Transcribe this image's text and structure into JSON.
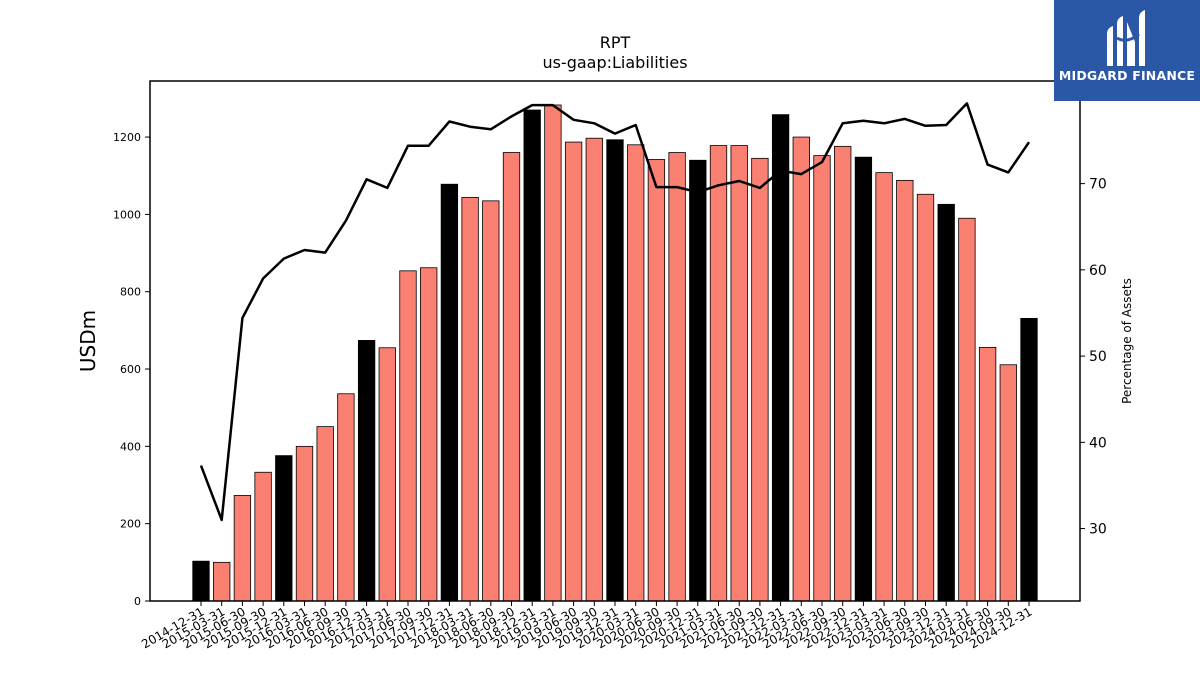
{
  "chart_data": {
    "type": "bar",
    "title": "RPT",
    "subtitle": "us-gaap:Liabilities",
    "ylabel": "USDm",
    "y2label": "Percentage of Assets",
    "ylim": [
      0,
      1345
    ],
    "y2lim": [
      21.6,
      81.9
    ],
    "yticks": [
      0,
      200,
      400,
      600,
      800,
      1000,
      1200
    ],
    "y2ticks": [
      30,
      40,
      50,
      60,
      70
    ],
    "grid": false,
    "legend": "none",
    "colors": {
      "annual": "#000000",
      "quarter": "#fa8072",
      "line": "#000000",
      "edge": "#000000"
    },
    "categories": [
      "2014-12-31",
      "2015-03-31",
      "2015-06-30",
      "2015-09-30",
      "2015-12-31",
      "2016-03-31",
      "2016-06-30",
      "2016-09-30",
      "2016-12-31",
      "2017-03-31",
      "2017-06-30",
      "2017-09-30",
      "2017-12-31",
      "2018-03-31",
      "2018-06-30",
      "2018-09-30",
      "2018-12-31",
      "2019-03-31",
      "2019-06-30",
      "2019-09-30",
      "2019-12-31",
      "2020-03-31",
      "2020-06-30",
      "2020-09-30",
      "2020-12-31",
      "2021-03-31",
      "2021-06-30",
      "2021-09-30",
      "2021-12-31",
      "2022-03-31",
      "2022-06-30",
      "2022-09-30",
      "2022-12-31",
      "2023-03-31",
      "2023-06-30",
      "2023-09-30",
      "2023-12-31",
      "2024-03-31",
      "2024-06-30",
      "2024-09-30",
      "2024-12-31"
    ],
    "series": [
      {
        "kind": "bar",
        "values": [
          103,
          100,
          273,
          333,
          376,
          400,
          451,
          536,
          674,
          655,
          854,
          862,
          1078,
          1044,
          1035,
          1160,
          1270,
          1283,
          1187,
          1197,
          1193,
          1180,
          1142,
          1160,
          1140,
          1178,
          1178,
          1145,
          1258,
          1200,
          1152,
          1176,
          1148,
          1108,
          1088,
          1052,
          1026,
          990,
          656,
          611,
          731
        ],
        "highlight": [
          true,
          false,
          false,
          false,
          true,
          false,
          false,
          false,
          true,
          false,
          false,
          false,
          true,
          false,
          false,
          false,
          true,
          false,
          false,
          false,
          true,
          false,
          false,
          false,
          true,
          false,
          false,
          false,
          true,
          false,
          false,
          false,
          true,
          false,
          false,
          false,
          true,
          false,
          false,
          false,
          true
        ]
      },
      {
        "kind": "line",
        "axis": "right",
        "values": [
          37.3,
          31.0,
          54.4,
          59.0,
          61.3,
          62.3,
          62.0,
          65.7,
          70.5,
          69.5,
          74.4,
          74.4,
          77.2,
          76.6,
          76.3,
          77.8,
          79.1,
          79.1,
          77.4,
          77.0,
          75.8,
          76.8,
          69.6,
          69.6,
          69.0,
          69.8,
          70.3,
          69.5,
          71.5,
          71.1,
          72.5,
          77.0,
          77.3,
          77.0,
          77.5,
          76.7,
          76.8,
          79.3,
          72.2,
          71.3,
          74.8
        ]
      }
    ]
  },
  "logo": {
    "text": "MIDGARD FINANCE"
  }
}
